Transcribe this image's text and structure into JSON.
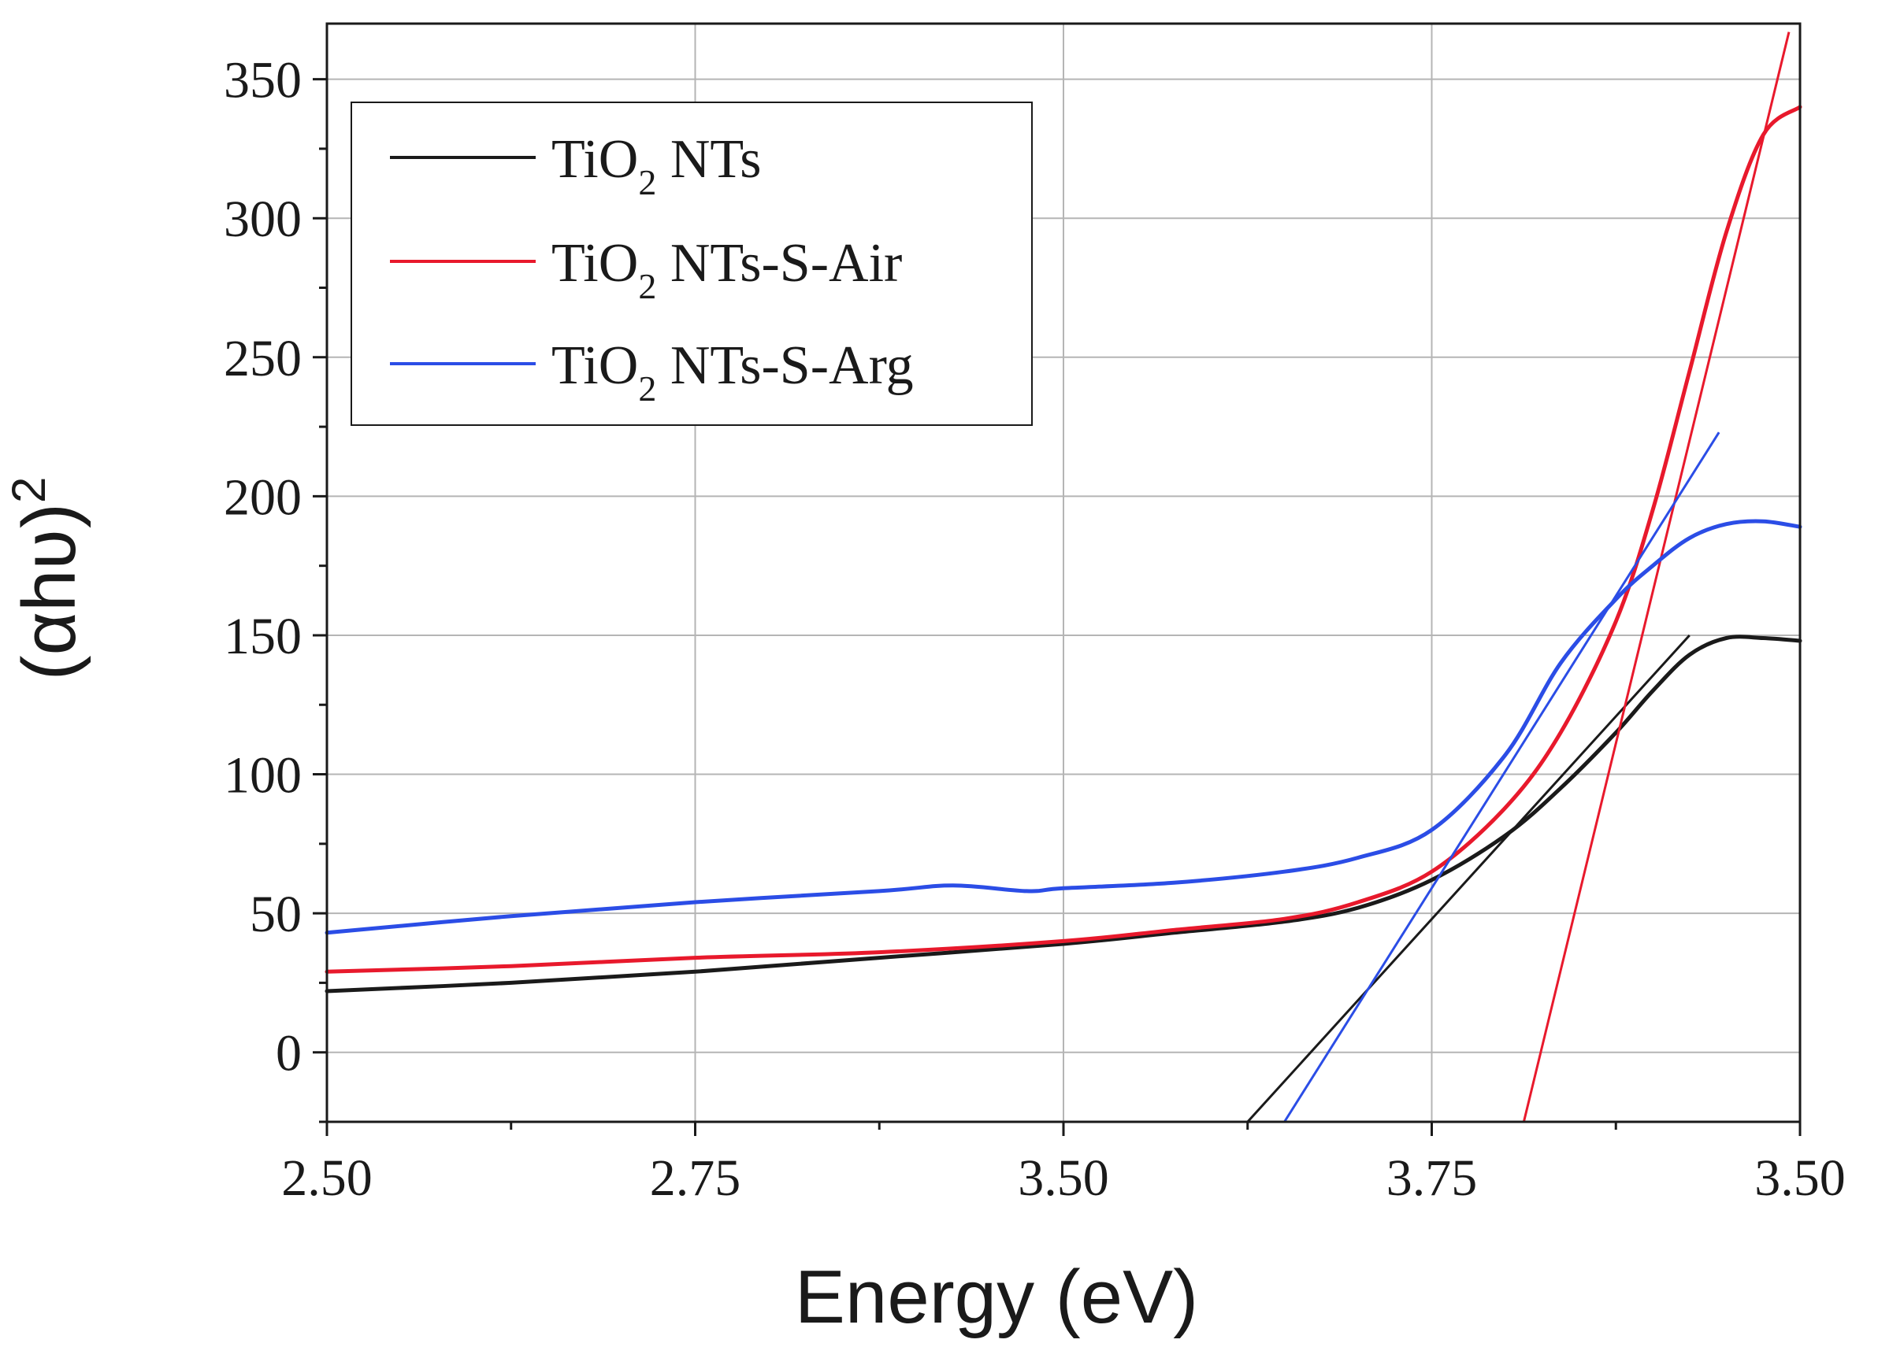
{
  "chart_data": {
    "type": "line",
    "title": "",
    "xlabel": "Energy (eV)",
    "ylabel_main": "(αhʋ)",
    "ylabel_sup": "2",
    "xlim": [
      0,
      4
    ],
    "ylim": [
      -25,
      370
    ],
    "grid": true,
    "x_major_ticks": [
      0,
      1,
      2,
      3,
      4
    ],
    "x_tick_labels": [
      "2.50",
      "2.75",
      "3.50",
      "3.75",
      "3.50"
    ],
    "x_minor_ticks": [
      0.5,
      1.5,
      2.5,
      3.5
    ],
    "y_ticks": [
      0,
      50,
      100,
      150,
      200,
      250,
      300,
      350
    ],
    "y_tick_labels": [
      "0",
      "50",
      "100",
      "150",
      "200",
      "250",
      "300",
      "350"
    ],
    "y_minor_ticks": [
      -25,
      25,
      75,
      125,
      175,
      225,
      275,
      325
    ],
    "legend_position": "top-left",
    "series": [
      {
        "name_prefix": "TiO",
        "name_sub": "2",
        "name_suffix": " NTs",
        "color": "#1a1a1a",
        "x": [
          0,
          0.5,
          1.0,
          1.5,
          2.0,
          2.3,
          2.6,
          2.8,
          3.0,
          3.2,
          3.35,
          3.5,
          3.6,
          3.7,
          3.8,
          3.9,
          4.0
        ],
        "y": [
          22,
          25,
          29,
          34,
          39,
          43,
          47,
          52,
          62,
          78,
          95,
          115,
          130,
          143,
          149,
          149,
          148
        ],
        "fit": {
          "x": [
            2.5,
            3.7
          ],
          "y": [
            -25,
            150
          ]
        }
      },
      {
        "name_prefix": "TiO",
        "name_sub": "2",
        "name_suffix": " NTs-S-Air",
        "color": "#e8192c",
        "x": [
          0,
          0.5,
          1.0,
          1.5,
          2.0,
          2.3,
          2.6,
          2.8,
          3.0,
          3.2,
          3.35,
          3.5,
          3.6,
          3.7,
          3.8,
          3.9,
          4.0
        ],
        "y": [
          29,
          31,
          34,
          36,
          40,
          44,
          48,
          54,
          65,
          88,
          115,
          155,
          195,
          245,
          295,
          330,
          340
        ],
        "fit": {
          "x": [
            3.25,
            3.97
          ],
          "y": [
            -25,
            367
          ]
        }
      },
      {
        "name_prefix": "TiO",
        "name_sub": "2",
        "name_suffix": " NTs-S-Arg",
        "color": "#2b4de6",
        "x": [
          0,
          0.5,
          1.0,
          1.5,
          1.7,
          1.9,
          2.0,
          2.3,
          2.6,
          2.8,
          3.0,
          3.2,
          3.35,
          3.5,
          3.6,
          3.7,
          3.8,
          3.9,
          4.0
        ],
        "y": [
          43,
          49,
          54,
          58,
          60,
          58,
          59,
          61,
          65,
          70,
          80,
          107,
          140,
          163,
          175,
          185,
          190,
          191,
          189
        ],
        "fit": {
          "x": [
            2.6,
            3.78
          ],
          "y": [
            -25,
            223
          ]
        }
      }
    ]
  }
}
